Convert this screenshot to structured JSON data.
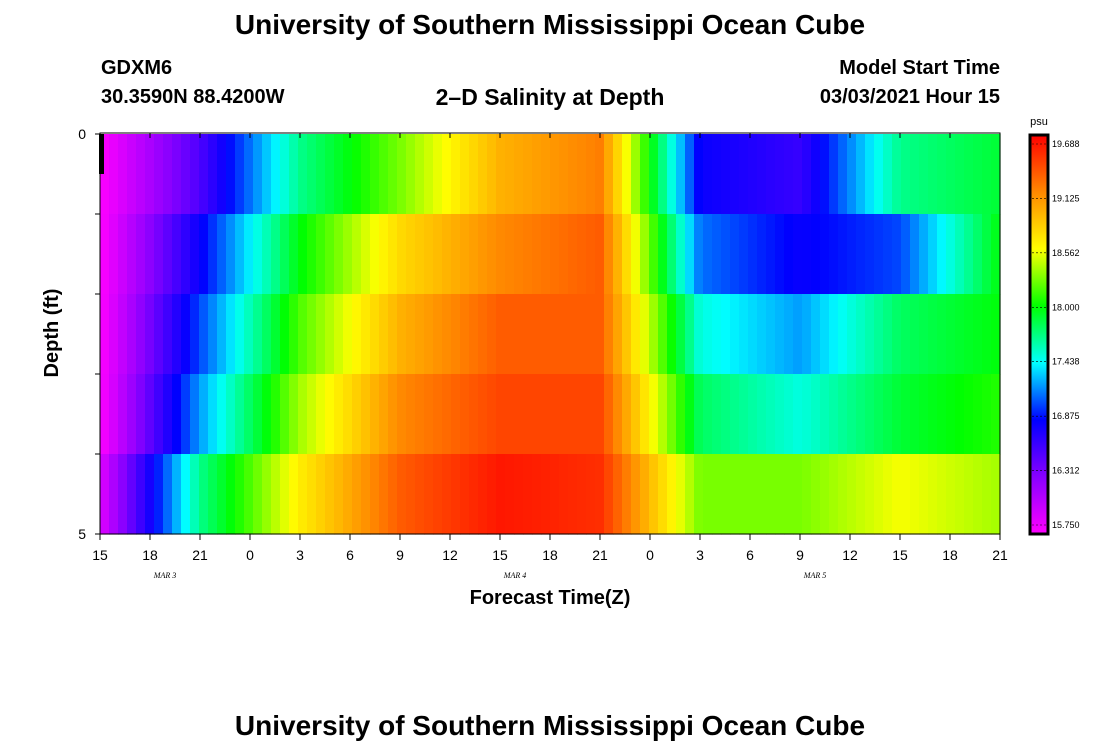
{
  "page": {
    "title_top": "University of Southern Mississippi Ocean Cube",
    "title_bottom": "University of Southern Mississippi Ocean Cube",
    "station_id": "GDXM6",
    "station_coords": "30.3590N 88.4200W",
    "plot_title": "2–D Salinity at Depth",
    "model_start_label": "Model Start Time",
    "model_start_value": "03/03/2021 Hour 15"
  },
  "colors": {
    "colormap": [
      "#ff00ff",
      "#8800ff",
      "#0000ff",
      "#00ffff",
      "#00ff00",
      "#ffff00",
      "#ff8800",
      "#ff0000"
    ]
  },
  "chart_data": {
    "type": "heatmap",
    "xlabel": "Forecast Time(Z)",
    "ylabel": "Depth (ft)",
    "x_tick_labels": [
      "15",
      "18",
      "21",
      "0",
      "3",
      "6",
      "9",
      "12",
      "15",
      "18",
      "21",
      "0",
      "3",
      "6",
      "9",
      "12",
      "15",
      "18",
      "21"
    ],
    "date_labels": [
      "MAR 3",
      "MAR 4",
      "MAR 5"
    ],
    "y_tick_labels": [
      "0",
      "5"
    ],
    "ylim": [
      0,
      5
    ],
    "x_hours": [
      0,
      6,
      12,
      18,
      24,
      30,
      36,
      42,
      48,
      54
    ],
    "depth_rows": 5,
    "colorbar": {
      "unit": "psu",
      "ticks": [
        "19.688",
        "19.125",
        "18.562",
        "18.000",
        "17.438",
        "16.875",
        "16.312",
        "15.750"
      ],
      "min": 15.75,
      "max": 19.9
    },
    "rows": [
      {
        "depth_ft": 0.5,
        "salinity": [
          15.75,
          16.6,
          17.8,
          18.4,
          19.1,
          19.35,
          16.9,
          16.7,
          17.8,
          18.0
        ]
      },
      {
        "depth_ft": 1.5,
        "salinity": [
          15.75,
          16.9,
          18.1,
          18.9,
          19.3,
          19.5,
          17.2,
          16.9,
          17.1,
          18.1
        ]
      },
      {
        "depth_ft": 2.5,
        "salinity": [
          15.75,
          17.1,
          18.3,
          19.1,
          19.5,
          19.5,
          17.6,
          17.3,
          17.9,
          18.1
        ]
      },
      {
        "depth_ft": 3.5,
        "salinity": [
          15.75,
          17.3,
          18.5,
          19.3,
          19.6,
          19.6,
          17.9,
          17.6,
          18.0,
          18.2
        ]
      },
      {
        "depth_ft": 4.5,
        "salinity": [
          15.9,
          17.8,
          18.8,
          19.5,
          19.8,
          19.7,
          18.4,
          18.4,
          18.7,
          18.5
        ]
      }
    ]
  }
}
